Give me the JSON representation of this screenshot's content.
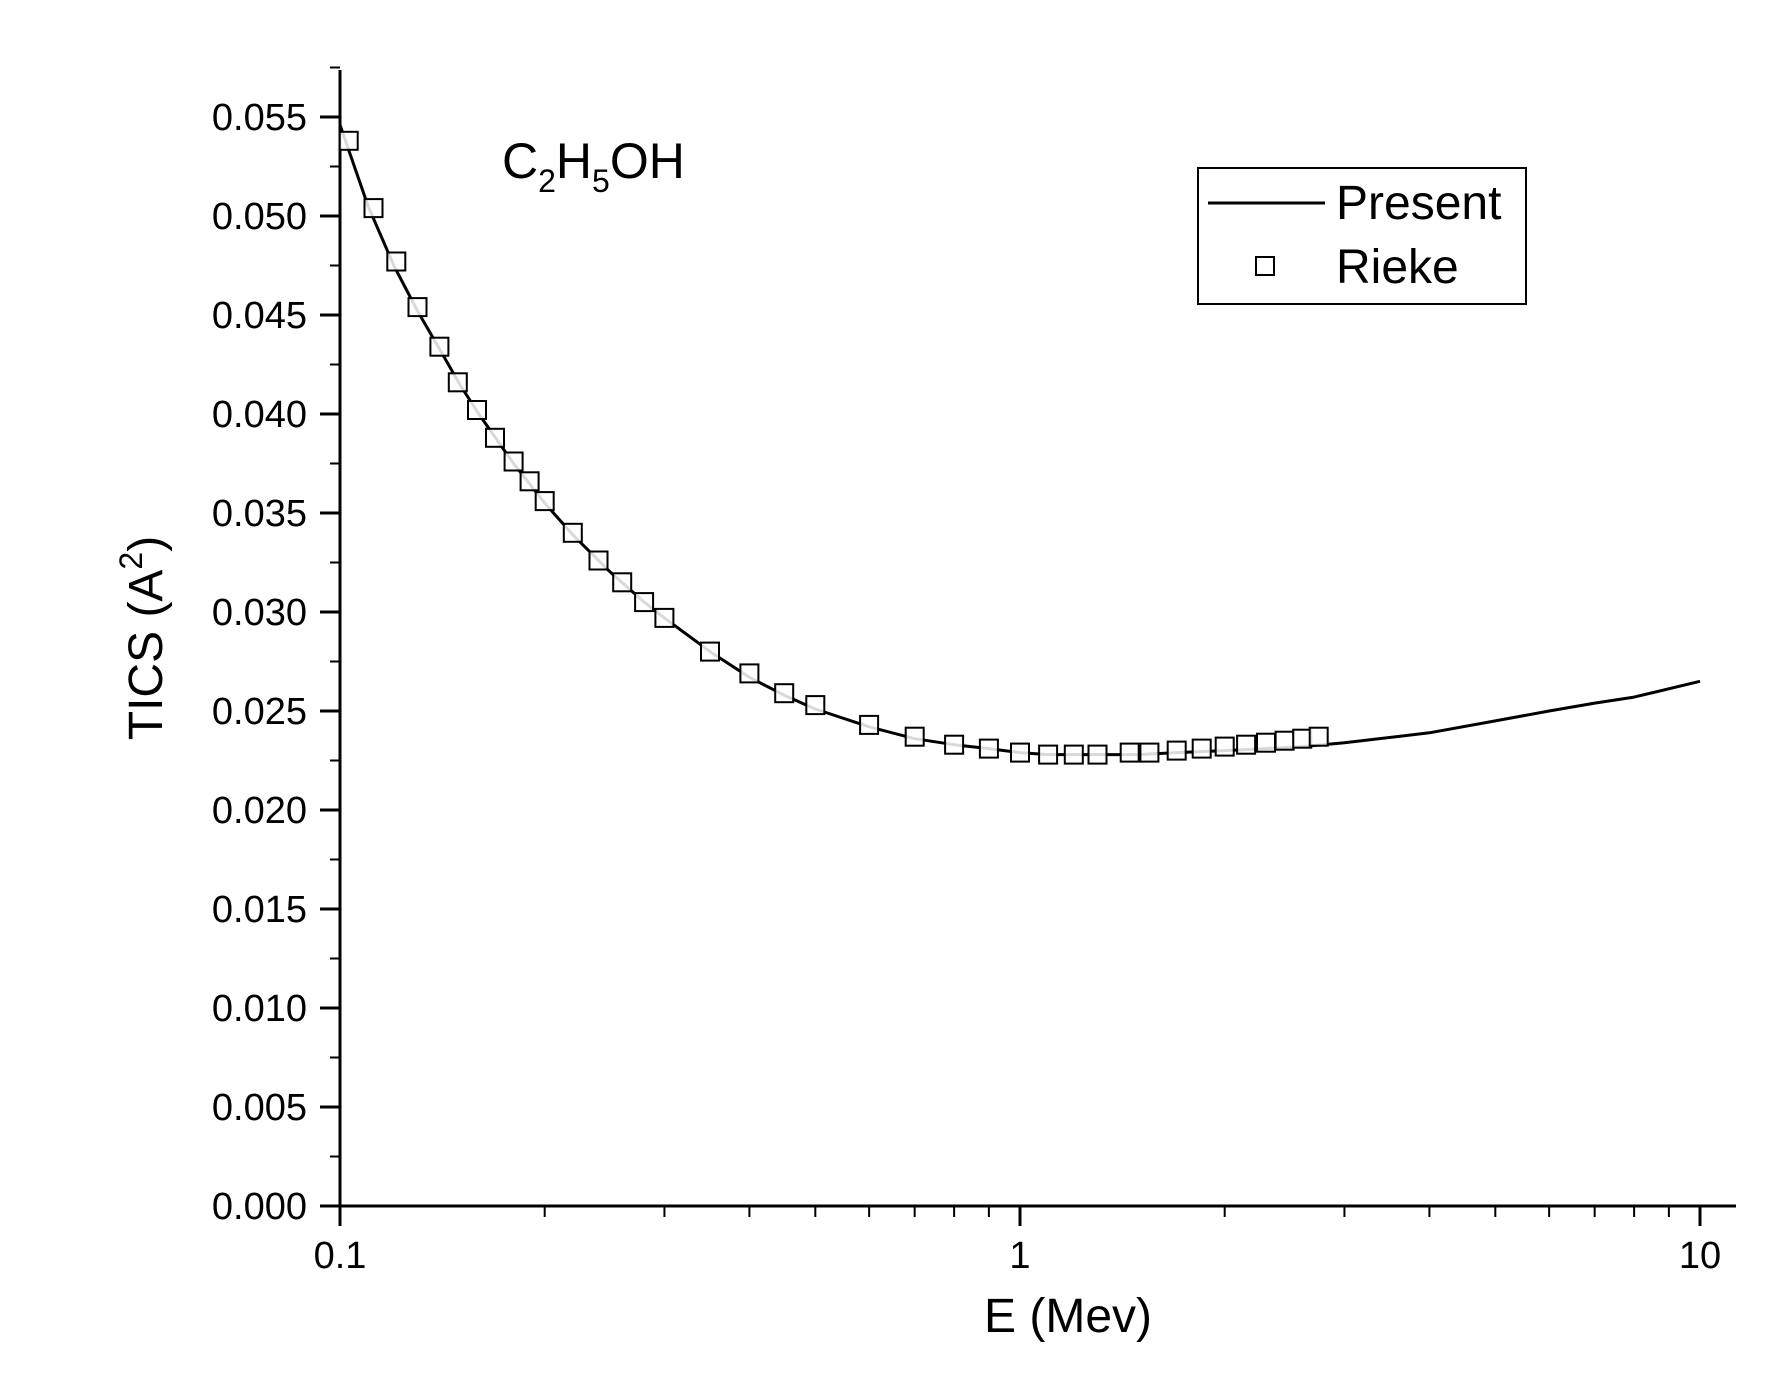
{
  "chart_data": {
    "type": "line",
    "annotation": {
      "main": "C",
      "sub1": "2",
      "mid": "H",
      "sub2": "5",
      "tail": "OH"
    },
    "xlabel": "E (Mev)",
    "ylabel": {
      "main": "TICS (A",
      "sup": "2",
      "close": ")"
    },
    "xscale": "log",
    "xlim": [
      0.1,
      11
    ],
    "ylim": [
      0,
      0.0575
    ],
    "x_ticks": [
      {
        "value": 0.1,
        "label": "0.1"
      },
      {
        "value": 1,
        "label": "1"
      },
      {
        "value": 10,
        "label": "10"
      }
    ],
    "y_ticks": [
      {
        "value": 0.0,
        "label": "0.000"
      },
      {
        "value": 0.005,
        "label": "0.005"
      },
      {
        "value": 0.01,
        "label": "0.010"
      },
      {
        "value": 0.015,
        "label": "0.015"
      },
      {
        "value": 0.02,
        "label": "0.020"
      },
      {
        "value": 0.025,
        "label": "0.025"
      },
      {
        "value": 0.03,
        "label": "0.030"
      },
      {
        "value": 0.035,
        "label": "0.035"
      },
      {
        "value": 0.04,
        "label": "0.040"
      },
      {
        "value": 0.045,
        "label": "0.045"
      },
      {
        "value": 0.05,
        "label": "0.050"
      },
      {
        "value": 0.055,
        "label": "0.055"
      }
    ],
    "legend": {
      "position": "top-right",
      "entries": [
        "Present",
        "Rieke"
      ]
    },
    "series": [
      {
        "name": "Present",
        "style": "line",
        "x": [
          0.1,
          0.11,
          0.12,
          0.13,
          0.14,
          0.15,
          0.16,
          0.18,
          0.2,
          0.22,
          0.25,
          0.28,
          0.3,
          0.35,
          0.4,
          0.45,
          0.5,
          0.6,
          0.7,
          0.8,
          0.9,
          1.0,
          1.1,
          1.2,
          1.3,
          1.5,
          1.7,
          2.0,
          2.3,
          2.6,
          3.0,
          4.0,
          5.0,
          6.0,
          7.0,
          8.0,
          10.0
        ],
        "values": [
          0.0546,
          0.0505,
          0.0475,
          0.0452,
          0.0433,
          0.0415,
          0.04,
          0.0375,
          0.0355,
          0.0339,
          0.032,
          0.0305,
          0.0297,
          0.028,
          0.0267,
          0.0258,
          0.0251,
          0.0242,
          0.0236,
          0.0233,
          0.0231,
          0.0229,
          0.0228,
          0.0228,
          0.0228,
          0.0228,
          0.0229,
          0.023,
          0.0231,
          0.0232,
          0.0234,
          0.0239,
          0.0245,
          0.025,
          0.0254,
          0.0257,
          0.0265
        ]
      },
      {
        "name": "Rieke",
        "style": "open-square",
        "x": [
          0.103,
          0.112,
          0.121,
          0.13,
          0.14,
          0.149,
          0.159,
          0.169,
          0.18,
          0.19,
          0.2,
          0.22,
          0.24,
          0.26,
          0.28,
          0.3,
          0.35,
          0.4,
          0.45,
          0.5,
          0.6,
          0.7,
          0.8,
          0.9,
          1.0,
          1.1,
          1.2,
          1.3,
          1.45,
          1.55,
          1.7,
          1.85,
          2.0,
          2.15,
          2.3,
          2.45,
          2.6,
          2.75
        ],
        "values": [
          0.0538,
          0.0504,
          0.0477,
          0.0454,
          0.0434,
          0.0416,
          0.0402,
          0.0388,
          0.0376,
          0.0366,
          0.0356,
          0.034,
          0.0326,
          0.0315,
          0.0305,
          0.0297,
          0.028,
          0.0269,
          0.0259,
          0.0253,
          0.0243,
          0.0237,
          0.0233,
          0.0231,
          0.0229,
          0.0228,
          0.0228,
          0.0228,
          0.0229,
          0.0229,
          0.023,
          0.0231,
          0.0232,
          0.0233,
          0.0234,
          0.0235,
          0.0236,
          0.0237
        ]
      }
    ]
  }
}
